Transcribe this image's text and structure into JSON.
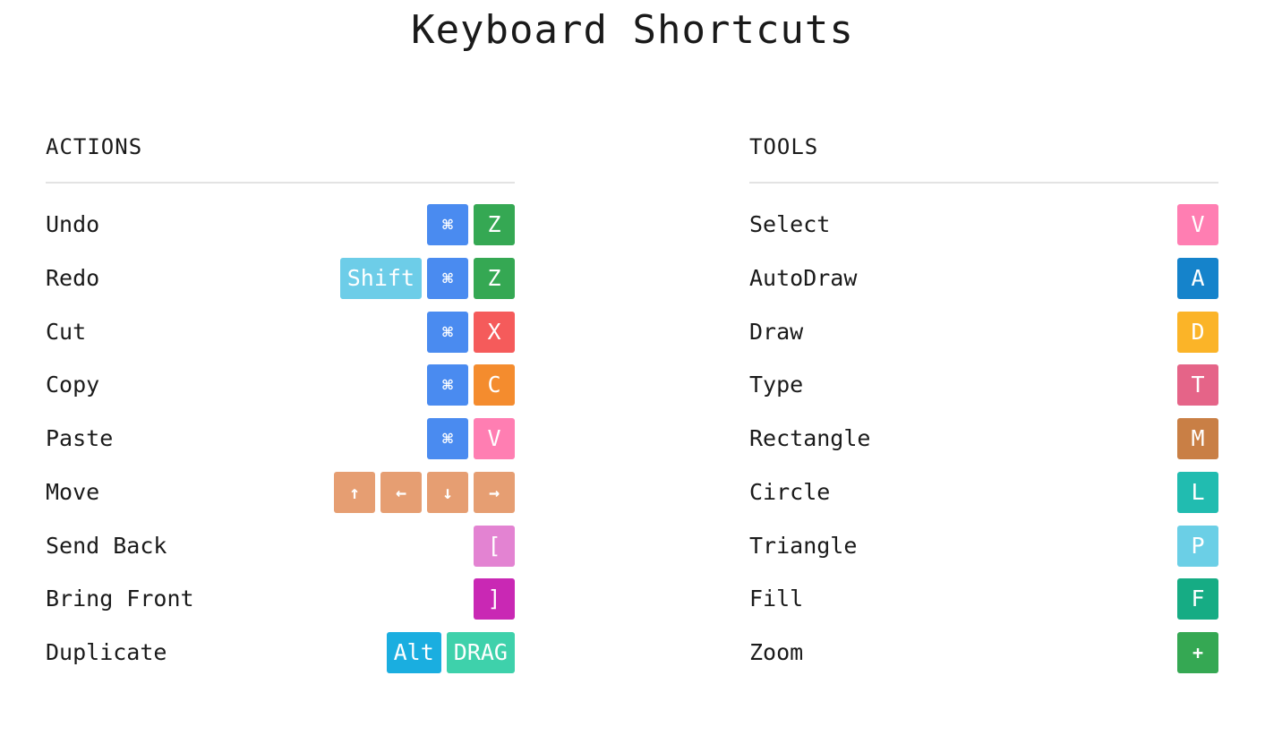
{
  "title": "Keyboard Shortcuts",
  "colors": {
    "cmd": "#4a8bf0",
    "z": "#35a853",
    "shift": "#6dcde8",
    "x": "#f55b5b",
    "c": "#f48c2e",
    "v": "#ff7eb2",
    "arrow": "#e69e72",
    "send_back": "#e383d2",
    "bring_front": "#c928b4",
    "alt": "#1aaee0",
    "drag": "#3ed1ab",
    "autodraw": "#1583cb",
    "draw": "#fbb428",
    "type": "#e56488",
    "rectangle": "#c97f45",
    "circle": "#21bcb0",
    "triangle": "#6bcfe6",
    "fill": "#16ac84",
    "zoom": "#35a853"
  },
  "actions": {
    "header": "ACTIONS",
    "rows": [
      {
        "label": "Undo",
        "keys": [
          {
            "text": "⌘",
            "icon": "command-icon",
            "color": "#4a8bf0"
          },
          {
            "text": "Z",
            "color": "#35a853"
          }
        ]
      },
      {
        "label": "Redo",
        "keys": [
          {
            "text": "Shift",
            "color": "#6dcde8"
          },
          {
            "text": "⌘",
            "icon": "command-icon",
            "color": "#4a8bf0"
          },
          {
            "text": "Z",
            "color": "#35a853"
          }
        ]
      },
      {
        "label": "Cut",
        "keys": [
          {
            "text": "⌘",
            "icon": "command-icon",
            "color": "#4a8bf0"
          },
          {
            "text": "X",
            "color": "#f55b5b"
          }
        ]
      },
      {
        "label": "Copy",
        "keys": [
          {
            "text": "⌘",
            "icon": "command-icon",
            "color": "#4a8bf0"
          },
          {
            "text": "C",
            "color": "#f48c2e"
          }
        ]
      },
      {
        "label": "Paste",
        "keys": [
          {
            "text": "⌘",
            "icon": "command-icon",
            "color": "#4a8bf0"
          },
          {
            "text": "V",
            "color": "#ff7eb2"
          }
        ]
      },
      {
        "label": "Move",
        "keys": [
          {
            "text": "↑",
            "icon": "arrow-up-icon",
            "color": "#e69e72"
          },
          {
            "text": "←",
            "icon": "arrow-left-icon",
            "color": "#e69e72"
          },
          {
            "text": "↓",
            "icon": "arrow-down-icon",
            "color": "#e69e72"
          },
          {
            "text": "→",
            "icon": "arrow-right-icon",
            "color": "#e69e72"
          }
        ]
      },
      {
        "label": "Send Back",
        "keys": [
          {
            "text": "[",
            "color": "#e383d2"
          }
        ]
      },
      {
        "label": "Bring Front",
        "keys": [
          {
            "text": "]",
            "color": "#c928b4"
          }
        ]
      },
      {
        "label": "Duplicate",
        "keys": [
          {
            "text": "Alt",
            "color": "#1aaee0"
          },
          {
            "text": "DRAG",
            "color": "#3ed1ab"
          }
        ]
      }
    ]
  },
  "tools": {
    "header": "TOOLS",
    "rows": [
      {
        "label": "Select",
        "keys": [
          {
            "text": "V",
            "color": "#ff7eb2"
          }
        ]
      },
      {
        "label": "AutoDraw",
        "keys": [
          {
            "text": "A",
            "color": "#1583cb"
          }
        ]
      },
      {
        "label": "Draw",
        "keys": [
          {
            "text": "D",
            "color": "#fbb428"
          }
        ]
      },
      {
        "label": "Type",
        "keys": [
          {
            "text": "T",
            "color": "#e56488"
          }
        ]
      },
      {
        "label": "Rectangle",
        "keys": [
          {
            "text": "M",
            "color": "#c97f45"
          }
        ]
      },
      {
        "label": "Circle",
        "keys": [
          {
            "text": "L",
            "color": "#21bcb0"
          }
        ]
      },
      {
        "label": "Triangle",
        "keys": [
          {
            "text": "P",
            "color": "#6bcfe6"
          }
        ]
      },
      {
        "label": "Fill",
        "keys": [
          {
            "text": "F",
            "color": "#16ac84"
          }
        ]
      },
      {
        "label": "Zoom",
        "keys": [
          {
            "text": "+",
            "color": "#35a853"
          }
        ]
      }
    ]
  }
}
